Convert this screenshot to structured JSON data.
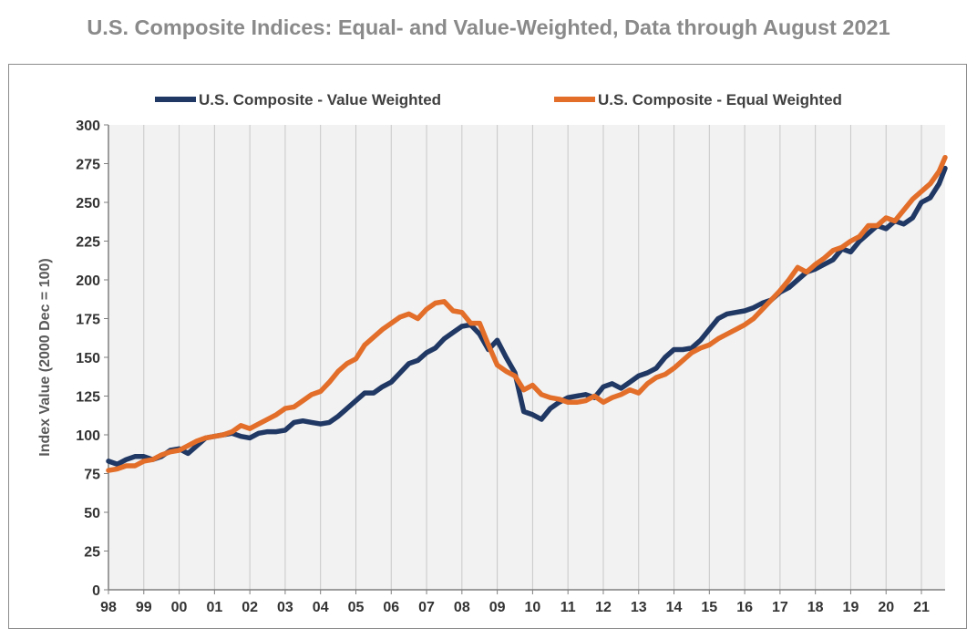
{
  "chart_data": {
    "type": "line",
    "title": "U.S. Composite Indices: Equal- and Value-Weighted, Data through August 2021",
    "ylabel": "Index Value (2000 Dec = 100)",
    "xlabel": "",
    "ylim": [
      0,
      300
    ],
    "yticks": [
      0,
      25,
      50,
      75,
      100,
      125,
      150,
      175,
      200,
      225,
      250,
      275,
      300
    ],
    "xlim": [
      1998.0,
      2021.67
    ],
    "xtick_labels": [
      "98",
      "99",
      "00",
      "01",
      "02",
      "03",
      "04",
      "05",
      "06",
      "07",
      "08",
      "09",
      "10",
      "11",
      "12",
      "13",
      "14",
      "15",
      "16",
      "17",
      "18",
      "19",
      "20",
      "21"
    ],
    "grid": "vertical",
    "legend_position": "top",
    "series": [
      {
        "name": "U.S. Composite - Value Weighted",
        "color": "#203864",
        "x": [
          1998.0,
          1998.25,
          1998.5,
          1998.75,
          1999.0,
          1999.25,
          1999.5,
          1999.75,
          2000.0,
          2000.25,
          2000.5,
          2000.75,
          2001.0,
          2001.25,
          2001.5,
          2001.75,
          2002.0,
          2002.25,
          2002.5,
          2002.75,
          2003.0,
          2003.25,
          2003.5,
          2003.75,
          2004.0,
          2004.25,
          2004.5,
          2004.75,
          2005.0,
          2005.25,
          2005.5,
          2005.75,
          2006.0,
          2006.25,
          2006.5,
          2006.75,
          2007.0,
          2007.25,
          2007.5,
          2007.75,
          2008.0,
          2008.25,
          2008.5,
          2008.75,
          2009.0,
          2009.25,
          2009.5,
          2009.75,
          2010.0,
          2010.25,
          2010.5,
          2010.75,
          2011.0,
          2011.25,
          2011.5,
          2011.75,
          2012.0,
          2012.25,
          2012.5,
          2012.75,
          2013.0,
          2013.25,
          2013.5,
          2013.75,
          2014.0,
          2014.25,
          2014.5,
          2014.75,
          2015.0,
          2015.25,
          2015.5,
          2015.75,
          2016.0,
          2016.25,
          2016.5,
          2016.75,
          2017.0,
          2017.25,
          2017.5,
          2017.75,
          2018.0,
          2018.25,
          2018.5,
          2018.75,
          2019.0,
          2019.25,
          2019.5,
          2019.75,
          2020.0,
          2020.25,
          2020.5,
          2020.75,
          2021.0,
          2021.25,
          2021.5,
          2021.67
        ],
        "values": [
          83,
          81,
          84,
          86,
          86,
          84,
          86,
          90,
          91,
          88,
          93,
          98,
          99,
          100,
          101,
          99,
          98,
          101,
          102,
          102,
          103,
          108,
          109,
          108,
          107,
          108,
          112,
          117,
          122,
          127,
          127,
          131,
          134,
          140,
          146,
          148,
          153,
          156,
          162,
          166,
          170,
          171,
          165,
          155,
          161,
          150,
          140,
          115,
          113,
          110,
          117,
          121,
          124,
          125,
          126,
          124,
          131,
          133,
          130,
          134,
          138,
          140,
          143,
          150,
          155,
          155,
          156,
          161,
          168,
          175,
          178,
          179,
          180,
          182,
          185,
          187,
          192,
          195,
          200,
          205,
          207,
          210,
          213,
          220,
          218,
          225,
          230,
          235,
          233,
          238,
          236,
          240,
          250,
          253,
          262,
          272
        ]
      },
      {
        "name": "U.S. Composite - Equal Weighted",
        "color": "#e26e2a",
        "x": [
          1998.0,
          1998.25,
          1998.5,
          1998.75,
          1999.0,
          1999.25,
          1999.5,
          1999.75,
          2000.0,
          2000.25,
          2000.5,
          2000.75,
          2001.0,
          2001.25,
          2001.5,
          2001.75,
          2002.0,
          2002.25,
          2002.5,
          2002.75,
          2003.0,
          2003.25,
          2003.5,
          2003.75,
          2004.0,
          2004.25,
          2004.5,
          2004.75,
          2005.0,
          2005.25,
          2005.5,
          2005.75,
          2006.0,
          2006.25,
          2006.5,
          2006.75,
          2007.0,
          2007.25,
          2007.5,
          2007.75,
          2008.0,
          2008.25,
          2008.5,
          2008.75,
          2009.0,
          2009.25,
          2009.5,
          2009.75,
          2010.0,
          2010.25,
          2010.5,
          2010.75,
          2011.0,
          2011.25,
          2011.5,
          2011.75,
          2012.0,
          2012.25,
          2012.5,
          2012.75,
          2013.0,
          2013.25,
          2013.5,
          2013.75,
          2014.0,
          2014.25,
          2014.5,
          2014.75,
          2015.0,
          2015.25,
          2015.5,
          2015.75,
          2016.0,
          2016.25,
          2016.5,
          2016.75,
          2017.0,
          2017.25,
          2017.5,
          2017.75,
          2018.0,
          2018.25,
          2018.5,
          2018.75,
          2019.0,
          2019.25,
          2019.5,
          2019.75,
          2020.0,
          2020.25,
          2020.5,
          2020.75,
          2021.0,
          2021.25,
          2021.5,
          2021.67
        ],
        "values": [
          77,
          78,
          80,
          80,
          83,
          84,
          87,
          89,
          90,
          93,
          96,
          98,
          99,
          100,
          102,
          106,
          104,
          107,
          110,
          113,
          117,
          118,
          122,
          126,
          128,
          134,
          141,
          146,
          149,
          158,
          163,
          168,
          172,
          176,
          178,
          175,
          181,
          185,
          186,
          180,
          179,
          172,
          172,
          158,
          145,
          141,
          138,
          129,
          132,
          126,
          124,
          123,
          121,
          121,
          122,
          125,
          121,
          124,
          126,
          129,
          127,
          133,
          137,
          139,
          143,
          148,
          153,
          156,
          158,
          162,
          165,
          168,
          171,
          175,
          181,
          187,
          193,
          200,
          208,
          205,
          210,
          214,
          219,
          221,
          225,
          228,
          235,
          235,
          240,
          238,
          245,
          252,
          257,
          262,
          270,
          279
        ]
      }
    ]
  }
}
